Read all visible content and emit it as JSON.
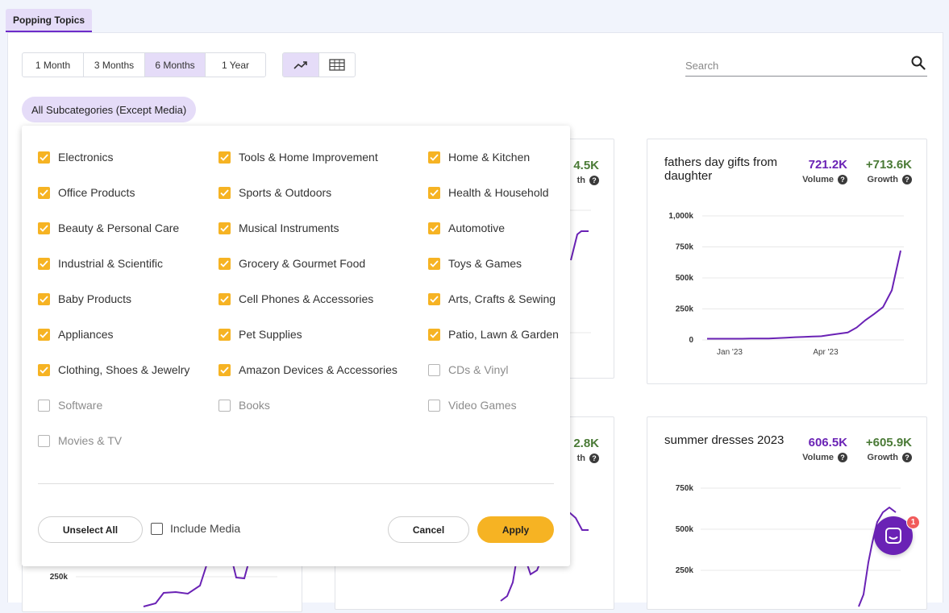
{
  "tabs": [
    {
      "label": "Popping Topics"
    }
  ],
  "toolbar": {
    "periods": [
      {
        "label": "1 Month",
        "active": false
      },
      {
        "label": "3 Months",
        "active": false
      },
      {
        "label": "6 Months",
        "active": true
      },
      {
        "label": "1 Year",
        "active": false
      }
    ],
    "views": [
      {
        "icon": "trend-line-icon",
        "active": true
      },
      {
        "icon": "table-grid-icon",
        "active": false
      }
    ],
    "search": {
      "placeholder": "Search",
      "value": ""
    },
    "subcategory_chip": "All Subcategories (Except Media)"
  },
  "cards": [
    {
      "title": "",
      "volume": "",
      "growth": "4.5K",
      "growth_label_partial": "th"
    },
    {
      "title": "fathers day gifts from daughter",
      "volume": "721.2K",
      "growth": "+713.6K",
      "volume_label": "Volume",
      "growth_label": "Growth",
      "chart_data": {
        "type": "line",
        "x_ticks": [
          "Jan '23",
          "Apr '23"
        ],
        "y_ticks": [
          "0",
          "250k",
          "500k",
          "750k",
          "1,000k"
        ],
        "ylim": [
          0,
          1000000
        ],
        "values": [
          10000,
          10000,
          10000,
          10000,
          10000,
          11000,
          12000,
          12000,
          14000,
          18000,
          22000,
          24000,
          27000,
          30000,
          40000,
          50000,
          60000,
          100000,
          160000,
          210000,
          265000,
          400000,
          720000
        ]
      }
    },
    {
      "title": "",
      "growth": "2.8K",
      "growth_label_partial": "th"
    },
    {
      "title": "summer dresses 2023",
      "volume": "606.5K",
      "growth": "+605.9K",
      "volume_label": "Volume",
      "growth_label": "Growth",
      "chart_data": {
        "type": "line",
        "y_ticks": [
          "250k",
          "500k",
          "750k"
        ],
        "ylim": [
          0,
          750000
        ]
      }
    },
    {
      "title": "",
      "chart_data": {
        "type": "line",
        "y_ticks": [
          "250k"
        ]
      }
    }
  ],
  "subcategories": [
    {
      "label": "Electronics",
      "checked": true
    },
    {
      "label": "Tools & Home Improvement",
      "checked": true
    },
    {
      "label": "Home & Kitchen",
      "checked": true
    },
    {
      "label": "Office Products",
      "checked": true
    },
    {
      "label": "Sports & Outdoors",
      "checked": true
    },
    {
      "label": "Health & Household",
      "checked": true
    },
    {
      "label": "Beauty & Personal Care",
      "checked": true
    },
    {
      "label": "Musical Instruments",
      "checked": true
    },
    {
      "label": "Automotive",
      "checked": true
    },
    {
      "label": "Industrial & Scientific",
      "checked": true
    },
    {
      "label": "Grocery & Gourmet Food",
      "checked": true
    },
    {
      "label": "Toys & Games",
      "checked": true
    },
    {
      "label": "Baby Products",
      "checked": true
    },
    {
      "label": "Cell Phones & Accessories",
      "checked": true
    },
    {
      "label": "Arts, Crafts & Sewing",
      "checked": true
    },
    {
      "label": "Appliances",
      "checked": true
    },
    {
      "label": "Pet Supplies",
      "checked": true
    },
    {
      "label": "Patio, Lawn & Garden",
      "checked": true
    },
    {
      "label": "Clothing, Shoes & Jewelry",
      "checked": true
    },
    {
      "label": "Amazon Devices & Accessories",
      "checked": true
    },
    {
      "label": "CDs & Vinyl",
      "checked": false
    },
    {
      "label": "Software",
      "checked": false
    },
    {
      "label": "Books",
      "checked": false
    },
    {
      "label": "Video Games",
      "checked": false
    },
    {
      "label": "Movies & TV",
      "checked": false
    }
  ],
  "dropdown_footer": {
    "unselect_all": "Unselect All",
    "include_media": "Include Media",
    "cancel": "Cancel",
    "apply": "Apply"
  },
  "chat": {
    "badge": "1"
  },
  "colors": {
    "accent": "#6a22b5",
    "selected": "#e5dcf8",
    "checkbox": "#f6b323",
    "growth": "#4a7a36"
  }
}
